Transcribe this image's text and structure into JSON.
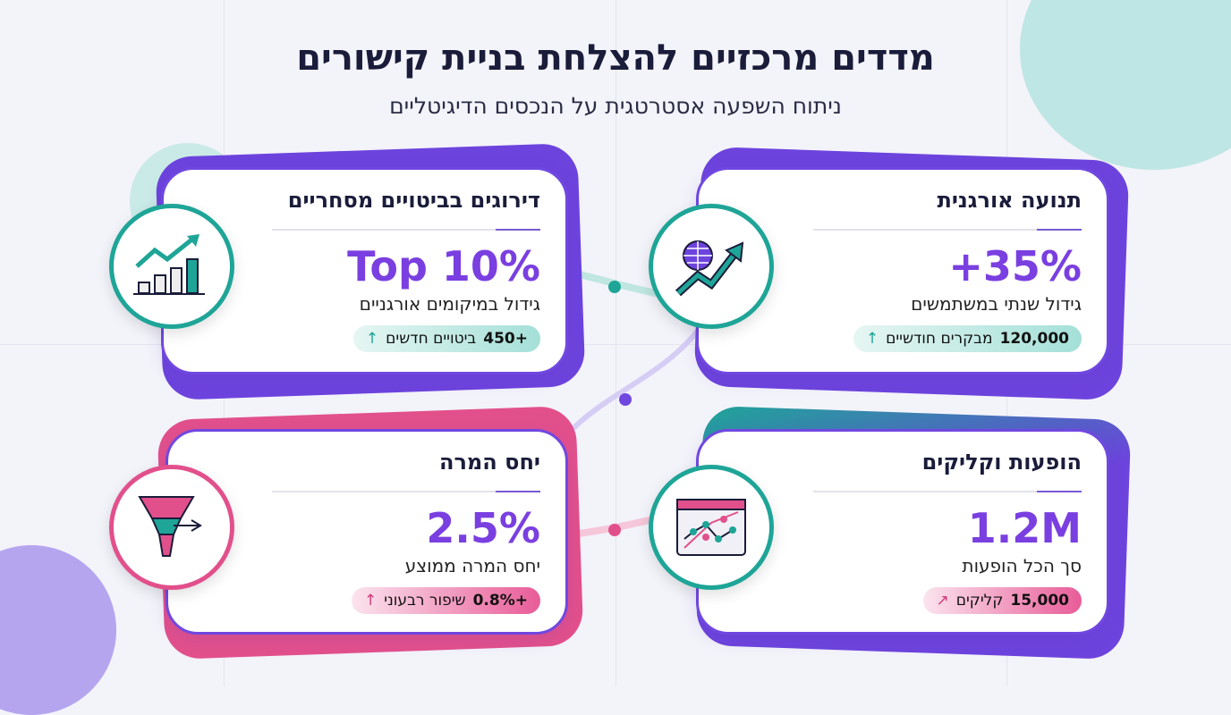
{
  "header": {
    "title": "מדדים מרכזיים להצלחת בניית קישורים",
    "subtitle": "ניתוח השפעה אסטרטגית על הנכסים הדיגיטליים"
  },
  "colors": {
    "purple": "#7a3fe0",
    "teal": "#1ea597",
    "pink": "#e2508c",
    "dark": "#1a1c3a"
  },
  "cards": [
    {
      "title": "תנועה אורגנית",
      "value": "+35%",
      "description": "גידול שנתי במשתמשים",
      "badge_value": "120,000",
      "badge_text": "מבקרים חודשיים",
      "badge_icon": "arrow-up-icon",
      "icon": "globe-growth-icon"
    },
    {
      "title": "דירוגים בביטויים מסחריים",
      "value": "Top 10%",
      "description": "גידול במיקומים אורגניים",
      "badge_value": "+450",
      "badge_text": "ביטויים חדשים",
      "badge_icon": "arrow-up-icon",
      "icon": "bar-chart-growth-icon"
    },
    {
      "title": "הופעות וקליקים",
      "value": "1.2M",
      "description": "סך הכל הופעות",
      "badge_value": "15,000",
      "badge_text": "קליקים",
      "badge_icon": "arrow-up-right-icon",
      "icon": "browser-chart-icon"
    },
    {
      "title": "יחס המרה",
      "value": "2.5%",
      "description": "יחס המרה ממוצע",
      "badge_value": "+0.8%",
      "badge_text": "שיפור רבעוני",
      "badge_icon": "arrow-up-icon",
      "icon": "funnel-icon"
    }
  ]
}
